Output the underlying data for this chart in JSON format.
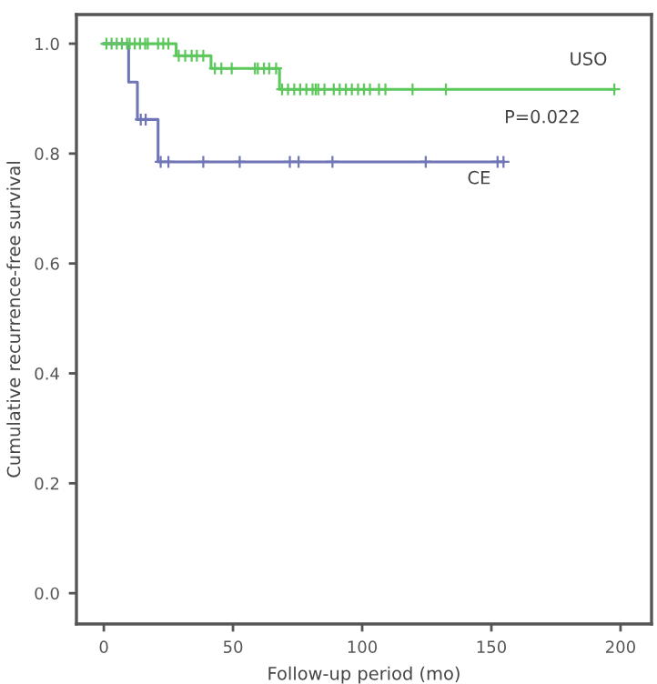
{
  "chart_data": {
    "type": "step",
    "xlabel": "Follow-up period (mo)",
    "ylabel": "Cumulative recurrence-free survival",
    "xlim": [
      -10.6,
      212
    ],
    "ylim": [
      -0.056,
      1.053
    ],
    "xticks": [
      0,
      50,
      100,
      150,
      200
    ],
    "yticks": [
      {
        "value": 0,
        "label": "0.0"
      },
      {
        "value": 0.2,
        "label": "0.2"
      },
      {
        "value": 0.4,
        "label": "0.4"
      },
      {
        "value": 0.6,
        "label": "0.6"
      },
      {
        "value": 0.8,
        "label": "0.8"
      },
      {
        "value": 1,
        "label": "1.0"
      }
    ],
    "grid": false,
    "legend": false,
    "series": [
      {
        "color": "#5cc85c",
        "marker": "none",
        "x": [
          0,
          28,
          41.5,
          68,
          197.6
        ],
        "values": [
          1,
          0.978,
          0.955,
          0.917,
          0.917
        ]
      },
      {
        "color": "#6f75b5",
        "marker": "none",
        "x": [
          0,
          9.6,
          13,
          21,
          154.7
        ],
        "values": [
          1,
          0.93,
          0.862,
          0.785,
          0.785
        ]
      },
      {
        "type": "scatter",
        "color": "#5cc85c",
        "marker": "cross",
        "x": [
          1,
          3,
          5,
          7,
          9,
          10,
          12,
          14,
          16,
          17,
          21,
          23,
          25,
          29,
          31.5,
          34,
          36,
          38.5,
          43,
          45.5,
          49.5,
          58.5,
          59.6,
          62,
          64,
          66.7,
          69,
          71.3,
          73.7,
          76,
          78.4,
          80.8,
          82,
          83,
          85.4,
          89,
          91.3,
          93.7,
          96,
          98.4,
          100.7,
          103,
          106.5,
          109,
          119.5,
          132.4,
          197.6
        ],
        "values": [
          1,
          1,
          1,
          1,
          1,
          1,
          1,
          1,
          1,
          1,
          1,
          1,
          1,
          0.978,
          0.978,
          0.978,
          0.978,
          0.978,
          0.955,
          0.955,
          0.955,
          0.955,
          0.955,
          0.955,
          0.955,
          0.955,
          0.917,
          0.917,
          0.917,
          0.917,
          0.917,
          0.917,
          0.917,
          0.917,
          0.917,
          0.917,
          0.917,
          0.917,
          0.917,
          0.917,
          0.917,
          0.917,
          0.917,
          0.917,
          0.917,
          0.917,
          0.917
        ]
      },
      {
        "type": "scatter",
        "color": "#6f75b5",
        "marker": "cross",
        "x": [
          14.3,
          16.2,
          22,
          25,
          38.5,
          52.6,
          72,
          75.4,
          88.5,
          124.6,
          152.4,
          154.7
        ],
        "values": [
          0.862,
          0.862,
          0.785,
          0.785,
          0.785,
          0.785,
          0.785,
          0.785,
          0.785,
          0.785,
          0.785,
          0.785
        ]
      }
    ],
    "annotations": [
      "USO",
      "P=0.022",
      "CE"
    ]
  }
}
